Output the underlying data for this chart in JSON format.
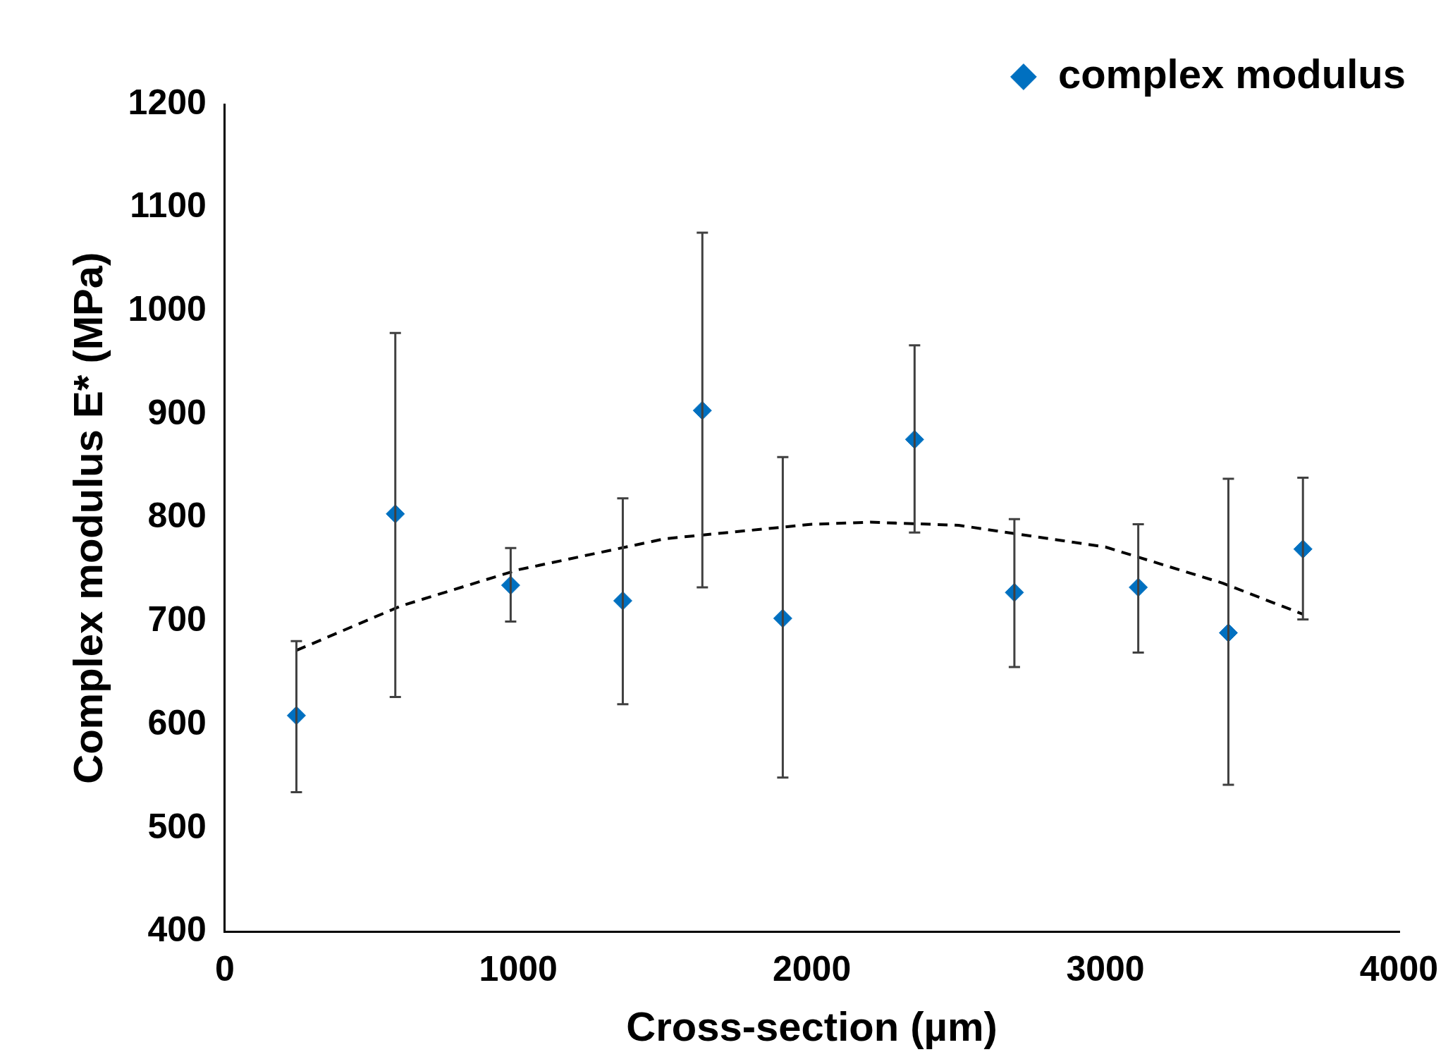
{
  "chart_data": {
    "type": "scatter",
    "xlabel": "Cross-section (µm)",
    "ylabel": "Complex modulus E* (MPa)",
    "xlim": [
      0,
      4000
    ],
    "xticks": [
      0,
      1000,
      2000,
      3000,
      4000
    ],
    "ylim": [
      400,
      1200
    ],
    "yticks": [
      400,
      500,
      600,
      700,
      800,
      900,
      1000,
      1100,
      1200
    ],
    "grid": false,
    "legend": "top right",
    "marker": "diamond",
    "series": [
      {
        "name": "complex modulus",
        "type": "scatter",
        "color": "#0070c0",
        "x": [
          244,
          581,
          974,
          1356,
          1627,
          1901,
          2350,
          2690,
          3112,
          3419,
          3673
        ],
        "values": [
          609,
          804,
          735,
          720,
          904,
          703,
          876,
          728,
          733,
          689,
          770
        ],
        "errors": [
          [
            535,
            681
          ],
          [
            627,
            979
          ],
          [
            700,
            771
          ],
          [
            620,
            819
          ],
          [
            733,
            1076
          ],
          [
            549,
            859
          ],
          [
            786,
            967
          ],
          [
            656,
            799
          ],
          [
            670,
            794
          ],
          [
            542,
            838
          ],
          [
            702,
            839
          ]
        ]
      },
      {
        "type": "line",
        "color": "#000000",
        "line_style": "dashed",
        "marker": "none",
        "x": [
          244,
          600,
          1000,
          1500,
          2000,
          2200,
          2500,
          3000,
          3400,
          3673
        ],
        "values": [
          672,
          715,
          750,
          780,
          794,
          796,
          793,
          772,
          737,
          707
        ]
      }
    ]
  }
}
